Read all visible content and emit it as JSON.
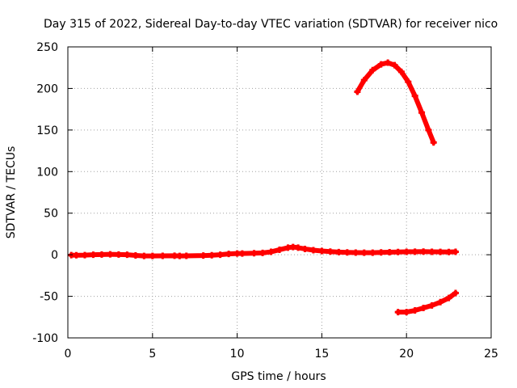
{
  "chart_data": {
    "type": "scatter",
    "title": "Day 315 of 2022, Sidereal Day-to-day VTEC variation (SDTVAR) for receiver nico",
    "xlabel": "GPS time / hours",
    "ylabel": "SDTVAR / TECUs",
    "xlim": [
      0,
      25
    ],
    "ylim": [
      -100,
      250
    ],
    "xticks": [
      0,
      5,
      10,
      15,
      20,
      25
    ],
    "yticks": [
      -100,
      -50,
      0,
      50,
      100,
      150,
      200,
      250
    ],
    "grid": true,
    "marker_color": "#ff0000",
    "series": [
      {
        "points": [
          [
            0.2,
            -0.5
          ],
          [
            0.5,
            -0.6
          ],
          [
            1.0,
            -0.5
          ],
          [
            1.5,
            0.0
          ],
          [
            2.0,
            0.3
          ],
          [
            2.5,
            0.5
          ],
          [
            3.0,
            0.3
          ],
          [
            3.5,
            0.0
          ],
          [
            4.0,
            -0.8
          ],
          [
            4.5,
            -1.4
          ],
          [
            5.0,
            -1.5
          ],
          [
            5.6,
            -1.3
          ],
          [
            6.3,
            -1.2
          ],
          [
            6.6,
            -1.4
          ],
          [
            7.0,
            -1.3
          ],
          [
            8.0,
            -1.0
          ],
          [
            8.5,
            -0.6
          ],
          [
            9.0,
            0.0
          ],
          [
            9.5,
            1.0
          ],
          [
            10.0,
            1.5
          ],
          [
            10.3,
            1.5
          ],
          [
            11.0,
            1.8
          ],
          [
            11.5,
            2.2
          ],
          [
            12.0,
            3.5
          ],
          [
            12.5,
            6.0
          ],
          [
            13.0,
            8.5
          ],
          [
            13.3,
            9.3
          ],
          [
            13.6,
            8.5
          ],
          [
            14.0,
            7.0
          ],
          [
            14.5,
            5.5
          ],
          [
            15.0,
            4.5
          ],
          [
            15.5,
            3.8
          ],
          [
            16.0,
            3.2
          ],
          [
            16.5,
            2.8
          ],
          [
            17.0,
            2.6
          ],
          [
            17.5,
            2.5
          ],
          [
            18.0,
            2.5
          ],
          [
            18.5,
            2.8
          ],
          [
            19.0,
            3.0
          ],
          [
            19.5,
            3.3
          ],
          [
            20.0,
            3.5
          ],
          [
            20.5,
            3.7
          ],
          [
            21.0,
            3.8
          ],
          [
            21.5,
            3.6
          ],
          [
            22.0,
            3.4
          ],
          [
            22.5,
            3.3
          ],
          [
            22.9,
            3.5
          ]
        ]
      },
      {
        "points": [
          [
            17.1,
            196
          ],
          [
            17.5,
            210
          ],
          [
            18.0,
            222
          ],
          [
            18.5,
            229
          ],
          [
            18.9,
            231
          ],
          [
            19.3,
            228
          ],
          [
            19.7,
            220
          ],
          [
            20.1,
            208
          ],
          [
            20.5,
            191
          ],
          [
            20.9,
            171
          ],
          [
            21.3,
            150
          ],
          [
            21.6,
            135
          ]
        ]
      },
      {
        "points": [
          [
            19.5,
            -69
          ],
          [
            20.0,
            -69
          ],
          [
            20.5,
            -67
          ],
          [
            21.0,
            -64
          ],
          [
            21.5,
            -61
          ],
          [
            22.0,
            -57
          ],
          [
            22.5,
            -52
          ],
          [
            22.9,
            -46
          ]
        ]
      }
    ]
  }
}
